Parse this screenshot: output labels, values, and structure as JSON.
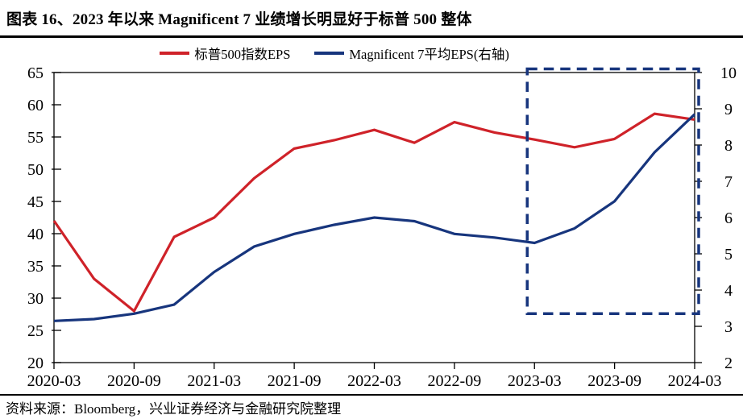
{
  "header": {
    "title": "图表 16、2023 年以来 Magnificent 7 业绩增长明显好于标普 500 整体"
  },
  "footer": {
    "source": "资料来源：Bloomberg，兴业证券经济与金融研究院整理"
  },
  "chart_data": {
    "type": "line",
    "title": "",
    "categories": [
      "2020-03",
      "2020-06",
      "2020-09",
      "2020-12",
      "2021-03",
      "2021-06",
      "2021-09",
      "2021-12",
      "2022-03",
      "2022-06",
      "2022-09",
      "2022-12",
      "2023-03",
      "2023-06",
      "2023-09",
      "2023-12",
      "2024-03"
    ],
    "series": [
      {
        "name": "标普500指数EPS",
        "axis": "left",
        "color": "#cf2229",
        "values": [
          42.0,
          33.0,
          28.0,
          39.5,
          42.5,
          48.6,
          53.2,
          54.5,
          56.1,
          54.1,
          57.3,
          55.7,
          54.6,
          53.4,
          54.7,
          58.6,
          57.7
        ]
      },
      {
        "name": "Magnificent 7平均EPS(右轴)",
        "axis": "right",
        "color": "#17357d",
        "values": [
          3.15,
          3.2,
          3.35,
          3.6,
          4.5,
          5.2,
          5.55,
          5.8,
          6.0,
          5.9,
          5.55,
          5.45,
          5.3,
          5.7,
          6.45,
          7.8,
          8.85
        ]
      }
    ],
    "left_axis": {
      "min": 20,
      "max": 65,
      "ticks": [
        20,
        25,
        30,
        35,
        40,
        45,
        50,
        55,
        60,
        65
      ]
    },
    "right_axis": {
      "min": 2,
      "max": 10,
      "ticks": [
        2,
        3,
        4,
        5,
        6,
        7,
        8,
        9,
        10
      ]
    },
    "x_tick_labels": [
      "2020-03",
      "2020-09",
      "2021-03",
      "2021-09",
      "2022-03",
      "2022-09",
      "2023-03",
      "2023-09",
      "2024-03"
    ],
    "grid": false,
    "legend_position": "top",
    "annotation_box": {
      "meaning": "dashed highlight of the period since 2023",
      "from_category": "2023-03",
      "to_category": "2024-03",
      "right_axis_from": 3.35,
      "right_axis_to": 10.1,
      "color": "#17357d",
      "style": "dashed"
    }
  }
}
